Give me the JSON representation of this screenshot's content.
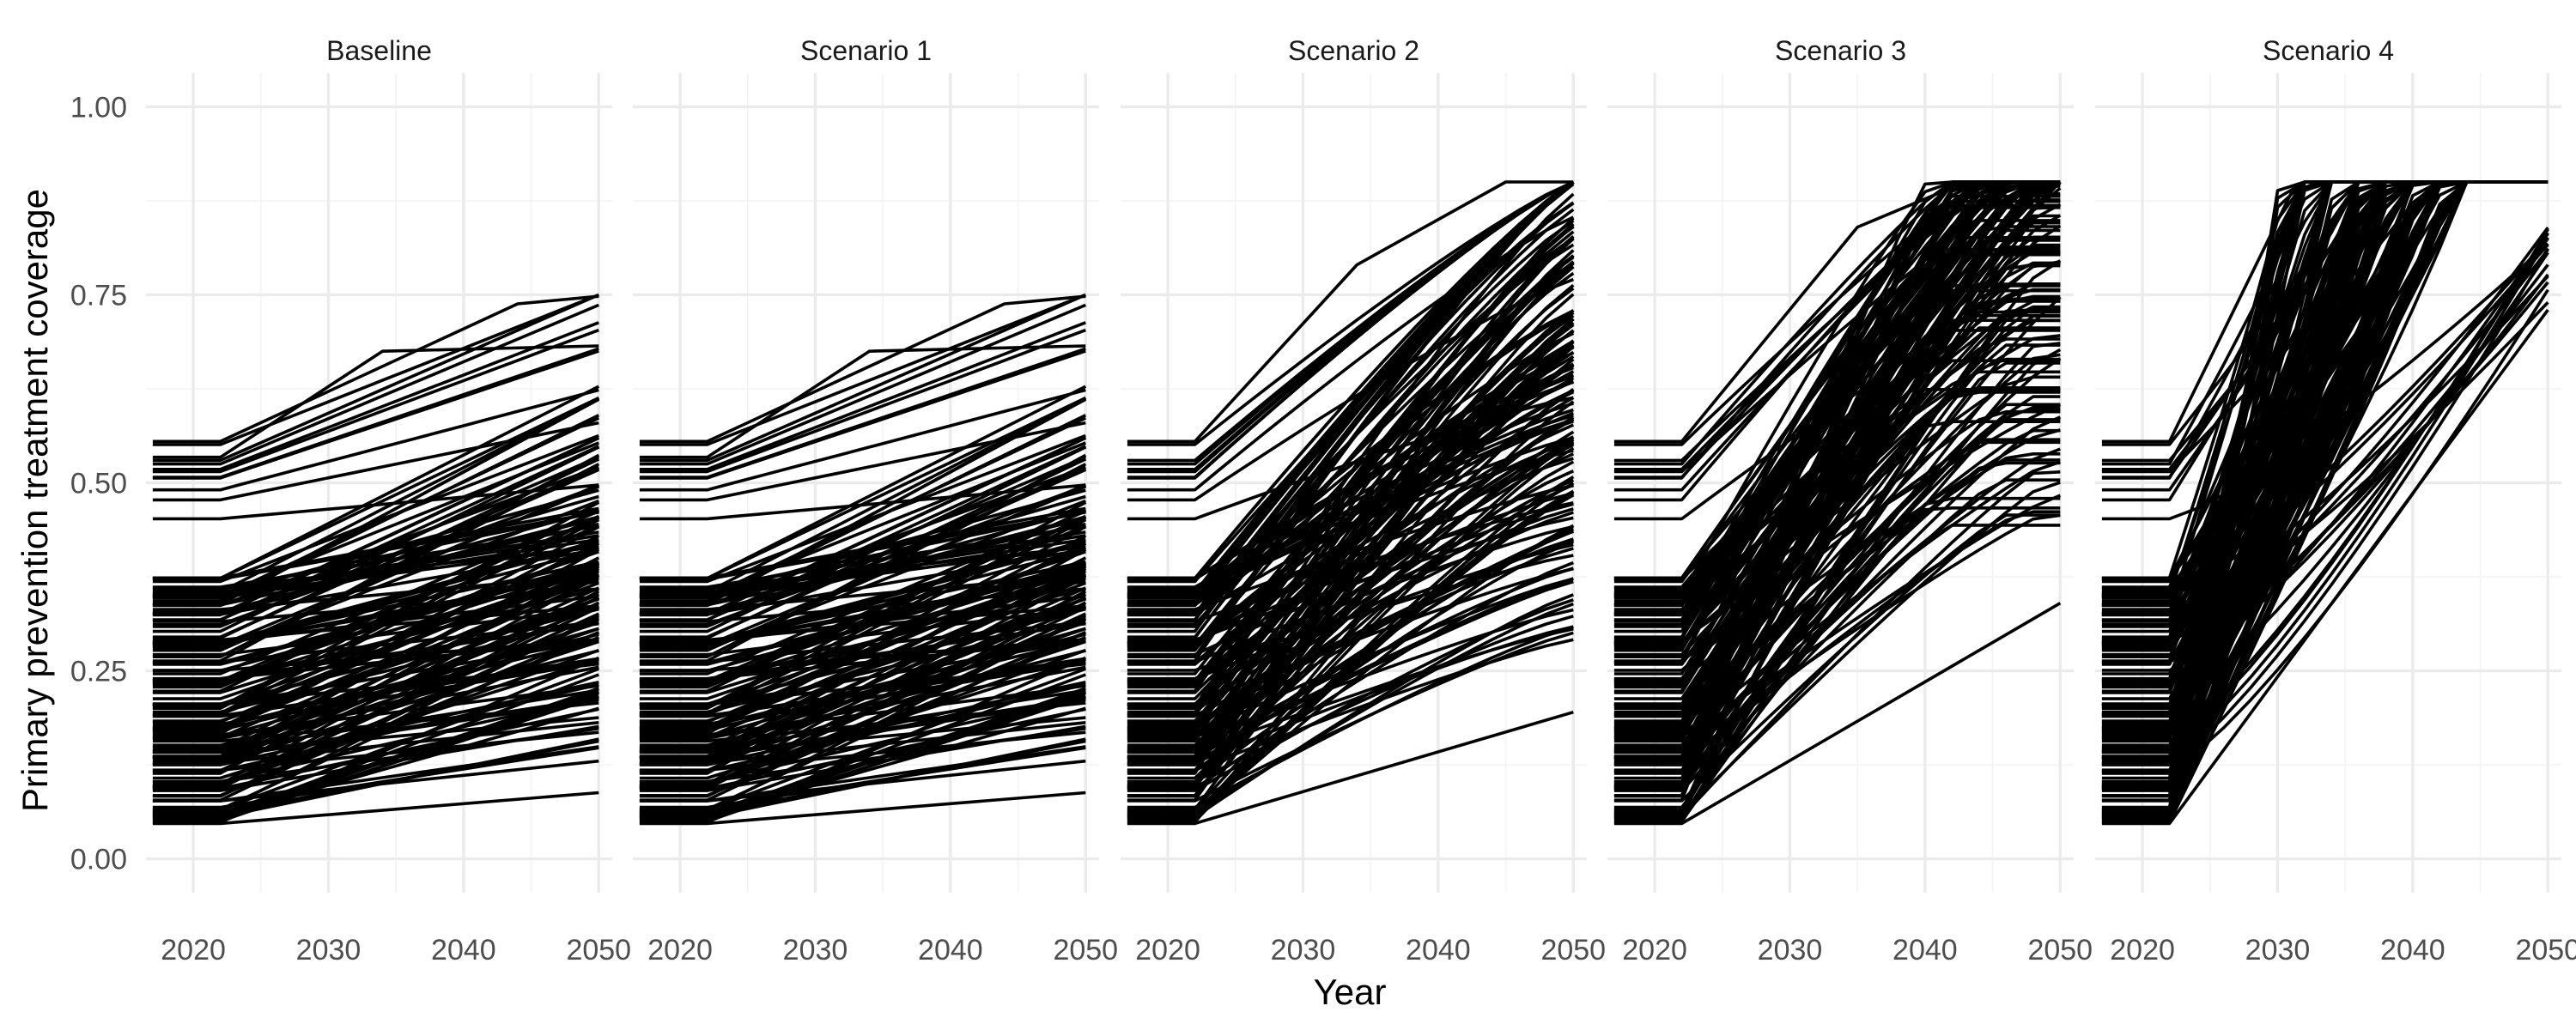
{
  "chart_data": {
    "type": "line",
    "facet_by": "scenario",
    "panels": [
      {
        "title": "Baseline",
        "trajectory_family": "baseline"
      },
      {
        "title": "Scenario 1",
        "trajectory_family": "baseline"
      },
      {
        "title": "Scenario 2",
        "trajectory_family": "scale_up_2050"
      },
      {
        "title": "Scenario 3",
        "trajectory_family": "scale_up_2043"
      },
      {
        "title": "Scenario 4",
        "trajectory_family": "scale_up_2033"
      }
    ],
    "xlabel": "Year",
    "ylabel": "Primary prevention treatment coverage",
    "xlim": [
      2016.5,
      2051
    ],
    "ylim": [
      -0.045,
      1.045
    ],
    "x_ticks": [
      2020,
      2030,
      2040,
      2050
    ],
    "x_tick_labels": [
      "2020",
      "2030",
      "2040",
      "2050"
    ],
    "y_ticks": [
      0,
      0.25,
      0.5,
      0.75,
      1
    ],
    "y_tick_labels": [
      "0.00",
      "0.25",
      "0.50",
      "0.75",
      "1.00"
    ],
    "grid": true,
    "legend": "none",
    "line_color": "#000000",
    "series_count_per_panel": 160,
    "coverage_ceiling": 0.9,
    "trajectory_families": {
      "baseline": {
        "description": "flat at initial coverage to 2022, then gradual rise to 2050",
        "sample_series": [
          {
            "x": [
              2017,
              2022,
              2050
            ],
            "y": [
              0.047,
              0.047,
              0.088
            ]
          },
          {
            "x": [
              2017,
              2022,
              2050
            ],
            "y": [
              0.077,
              0.077,
              0.13
            ]
          },
          {
            "x": [
              2017,
              2022,
              2050
            ],
            "y": [
              0.25,
              0.25,
              0.39
            ]
          },
          {
            "x": [
              2017,
              2022,
              2034,
              2050
            ],
            "y": [
              0.534,
              0.534,
              0.675,
              0.682
            ]
          },
          {
            "x": [
              2017,
              2022,
              2044,
              2050
            ],
            "y": [
              0.555,
              0.555,
              0.738,
              0.748
            ]
          }
        ]
      },
      "scale_up_2050": {
        "description": "S-shaped scale-up toward 0.90 ceiling by 2050",
        "sample_series": [
          {
            "x": [
              2017,
              2022,
              2050
            ],
            "y": [
              0.047,
              0.047,
              0.195
            ]
          },
          {
            "x": [
              2017,
              2022,
              2034,
              2045,
              2050
            ],
            "y": [
              0.555,
              0.555,
              0.79,
              0.9,
              0.9
            ]
          }
        ]
      },
      "scale_up_2043": {
        "description": "S-shaped scale-up toward 0.90 ceiling by ~2043",
        "sample_series": [
          {
            "x": [
              2017,
              2022,
              2050
            ],
            "y": [
              0.047,
              0.047,
              0.34
            ]
          },
          {
            "x": [
              2017,
              2022,
              2035,
              2043,
              2050
            ],
            "y": [
              0.555,
              0.555,
              0.84,
              0.9,
              0.9
            ]
          }
        ]
      },
      "scale_up_2033": {
        "description": "steep scale-up reaching 0.90 ceiling by ~2033",
        "sample_series": [
          {
            "x": [
              2017,
              2022,
              2050
            ],
            "y": [
              0.047,
              0.047,
              0.73
            ]
          },
          {
            "x": [
              2017,
              2022,
              2031,
              2033,
              2050
            ],
            "y": [
              0.555,
              0.555,
              0.885,
              0.9,
              0.9
            ]
          }
        ]
      }
    }
  }
}
